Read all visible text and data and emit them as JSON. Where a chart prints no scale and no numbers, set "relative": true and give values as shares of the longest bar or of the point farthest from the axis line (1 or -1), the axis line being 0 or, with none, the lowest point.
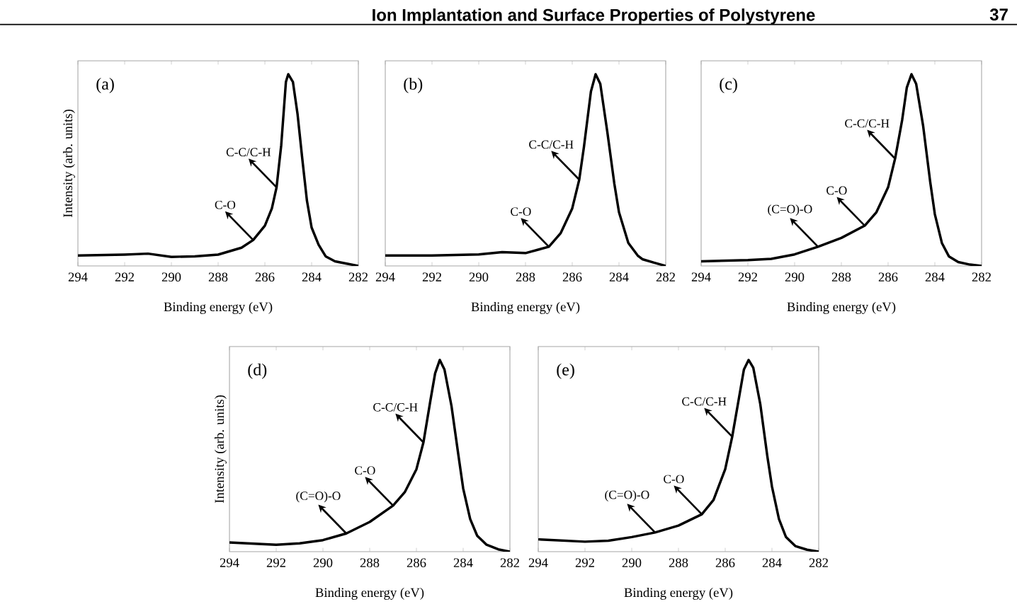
{
  "chart_data": [
    {
      "type": "line",
      "title": "(a)",
      "xlabel": "Binding energy (eV)",
      "ylabel": "Intensity (arb. units)",
      "relative": true,
      "tick_labels": "x",
      "xlim": [
        294,
        282
      ],
      "xticks": [
        294,
        292,
        290,
        288,
        286,
        284,
        282
      ],
      "x": [
        294,
        292,
        291,
        290,
        289,
        288,
        287,
        286.5,
        286,
        285.7,
        285.5,
        285.3,
        285.1,
        285,
        284.8,
        284.6,
        284.4,
        284.2,
        284,
        283.7,
        283.4,
        283,
        282.5,
        282
      ],
      "series": [
        {
          "color": "#000000",
          "values": [
            0.054,
            0.059,
            0.064,
            0.047,
            0.05,
            0.059,
            0.095,
            0.135,
            0.21,
            0.3,
            0.41,
            0.63,
            0.96,
            1.0,
            0.96,
            0.79,
            0.56,
            0.34,
            0.2,
            0.11,
            0.05,
            0.024,
            0.012,
            0.0
          ]
        }
      ],
      "annotations": [
        "Ion Implantation and Surface Properties of Polystyrene",
        "37",
        {
          "text": "C-C/C-H",
          "x": 285.5,
          "y": 0.41
        },
        {
          "text": "C-O",
          "x": 286.5,
          "y": 0.135
        }
      ]
    },
    {
      "type": "line",
      "title": "(b)",
      "xlabel": "Binding energy (eV)",
      "relative": true,
      "tick_labels": "x",
      "xlim": [
        294,
        282
      ],
      "xticks": [
        294,
        292,
        290,
        288,
        286,
        284,
        282
      ],
      "x": [
        294,
        292,
        290,
        289,
        288,
        287,
        286.5,
        286,
        285.7,
        285.5,
        285.2,
        285,
        284.8,
        284.5,
        284.2,
        284,
        283.6,
        283.2,
        283,
        282.5,
        282
      ],
      "series": [
        {
          "color": "#000000",
          "values": [
            0.054,
            0.054,
            0.06,
            0.072,
            0.067,
            0.1,
            0.17,
            0.3,
            0.45,
            0.62,
            0.91,
            1.0,
            0.95,
            0.7,
            0.43,
            0.28,
            0.12,
            0.054,
            0.035,
            0.017,
            0.0
          ]
        }
      ],
      "annotations": [
        {
          "text": "C-C/C-H",
          "x": 285.7,
          "y": 0.45
        },
        {
          "text": "C-O",
          "x": 287,
          "y": 0.1
        }
      ]
    },
    {
      "type": "line",
      "title": "(c)",
      "xlabel": "Binding energy (eV)",
      "relative": true,
      "tick_labels": "x",
      "xlim": [
        294,
        282
      ],
      "xticks": [
        294,
        292,
        290,
        288,
        286,
        284,
        282
      ],
      "x": [
        294,
        292,
        291,
        290,
        289,
        288,
        287,
        286.5,
        286,
        285.7,
        285.4,
        285.2,
        285,
        284.8,
        284.5,
        284.2,
        284,
        283.7,
        283.4,
        283,
        282.5,
        282
      ],
      "series": [
        {
          "color": "#000000",
          "values": [
            0.024,
            0.03,
            0.037,
            0.06,
            0.1,
            0.146,
            0.21,
            0.28,
            0.41,
            0.56,
            0.76,
            0.93,
            1.0,
            0.95,
            0.73,
            0.44,
            0.27,
            0.12,
            0.05,
            0.02,
            0.007,
            0.0
          ]
        }
      ],
      "annotations": [
        {
          "text": "C-C/C-H",
          "x": 285.7,
          "y": 0.56
        },
        {
          "text": "C-O",
          "x": 287,
          "y": 0.21
        },
        {
          "text": "(C=O)-O",
          "x": 289,
          "y": 0.1
        }
      ]
    },
    {
      "type": "line",
      "title": "(d)",
      "xlabel": "Binding energy (eV)",
      "ylabel": "Intensity (arb. units)",
      "relative": true,
      "tick_labels": "x",
      "xlim": [
        294,
        282
      ],
      "xticks": [
        294,
        292,
        290,
        288,
        286,
        284,
        282
      ],
      "x": [
        294,
        292,
        291,
        290,
        289,
        288,
        287,
        286.5,
        286,
        285.7,
        285.4,
        285.2,
        285,
        284.8,
        284.5,
        284.2,
        284,
        283.7,
        283.4,
        283,
        282.5,
        282
      ],
      "series": [
        {
          "color": "#000000",
          "values": [
            0.048,
            0.036,
            0.043,
            0.06,
            0.095,
            0.155,
            0.24,
            0.31,
            0.43,
            0.57,
            0.79,
            0.93,
            1.0,
            0.95,
            0.76,
            0.5,
            0.33,
            0.17,
            0.083,
            0.036,
            0.012,
            0.0
          ]
        }
      ],
      "annotations": [
        {
          "text": "C-C/C-H",
          "x": 285.7,
          "y": 0.57
        },
        {
          "text": "C-O",
          "x": 287,
          "y": 0.24
        },
        {
          "text": "(C=O)-O",
          "x": 289,
          "y": 0.095
        }
      ]
    },
    {
      "type": "line",
      "title": "(e)",
      "xlabel": "Binding energy (eV)",
      "relative": true,
      "tick_labels": "x",
      "xlim": [
        294,
        282
      ],
      "xticks": [
        294,
        292,
        290,
        288,
        286,
        284,
        282
      ],
      "x": [
        294,
        292,
        291,
        290,
        289,
        288,
        287,
        286.5,
        286,
        285.7,
        285.4,
        285.2,
        285,
        284.8,
        284.5,
        284.2,
        284,
        283.7,
        283.4,
        283,
        282.5,
        282
      ],
      "series": [
        {
          "color": "#000000",
          "values": [
            0.064,
            0.052,
            0.057,
            0.076,
            0.1,
            0.136,
            0.195,
            0.27,
            0.43,
            0.6,
            0.81,
            0.95,
            1.0,
            0.96,
            0.77,
            0.5,
            0.34,
            0.17,
            0.076,
            0.029,
            0.01,
            0.0
          ]
        }
      ],
      "annotations": [
        {
          "text": "C-C/C-H",
          "x": 285.7,
          "y": 0.6
        },
        {
          "text": "C-O",
          "x": 287,
          "y": 0.195
        },
        {
          "text": "(C=O)-O",
          "x": 289,
          "y": 0.1
        }
      ]
    }
  ]
}
